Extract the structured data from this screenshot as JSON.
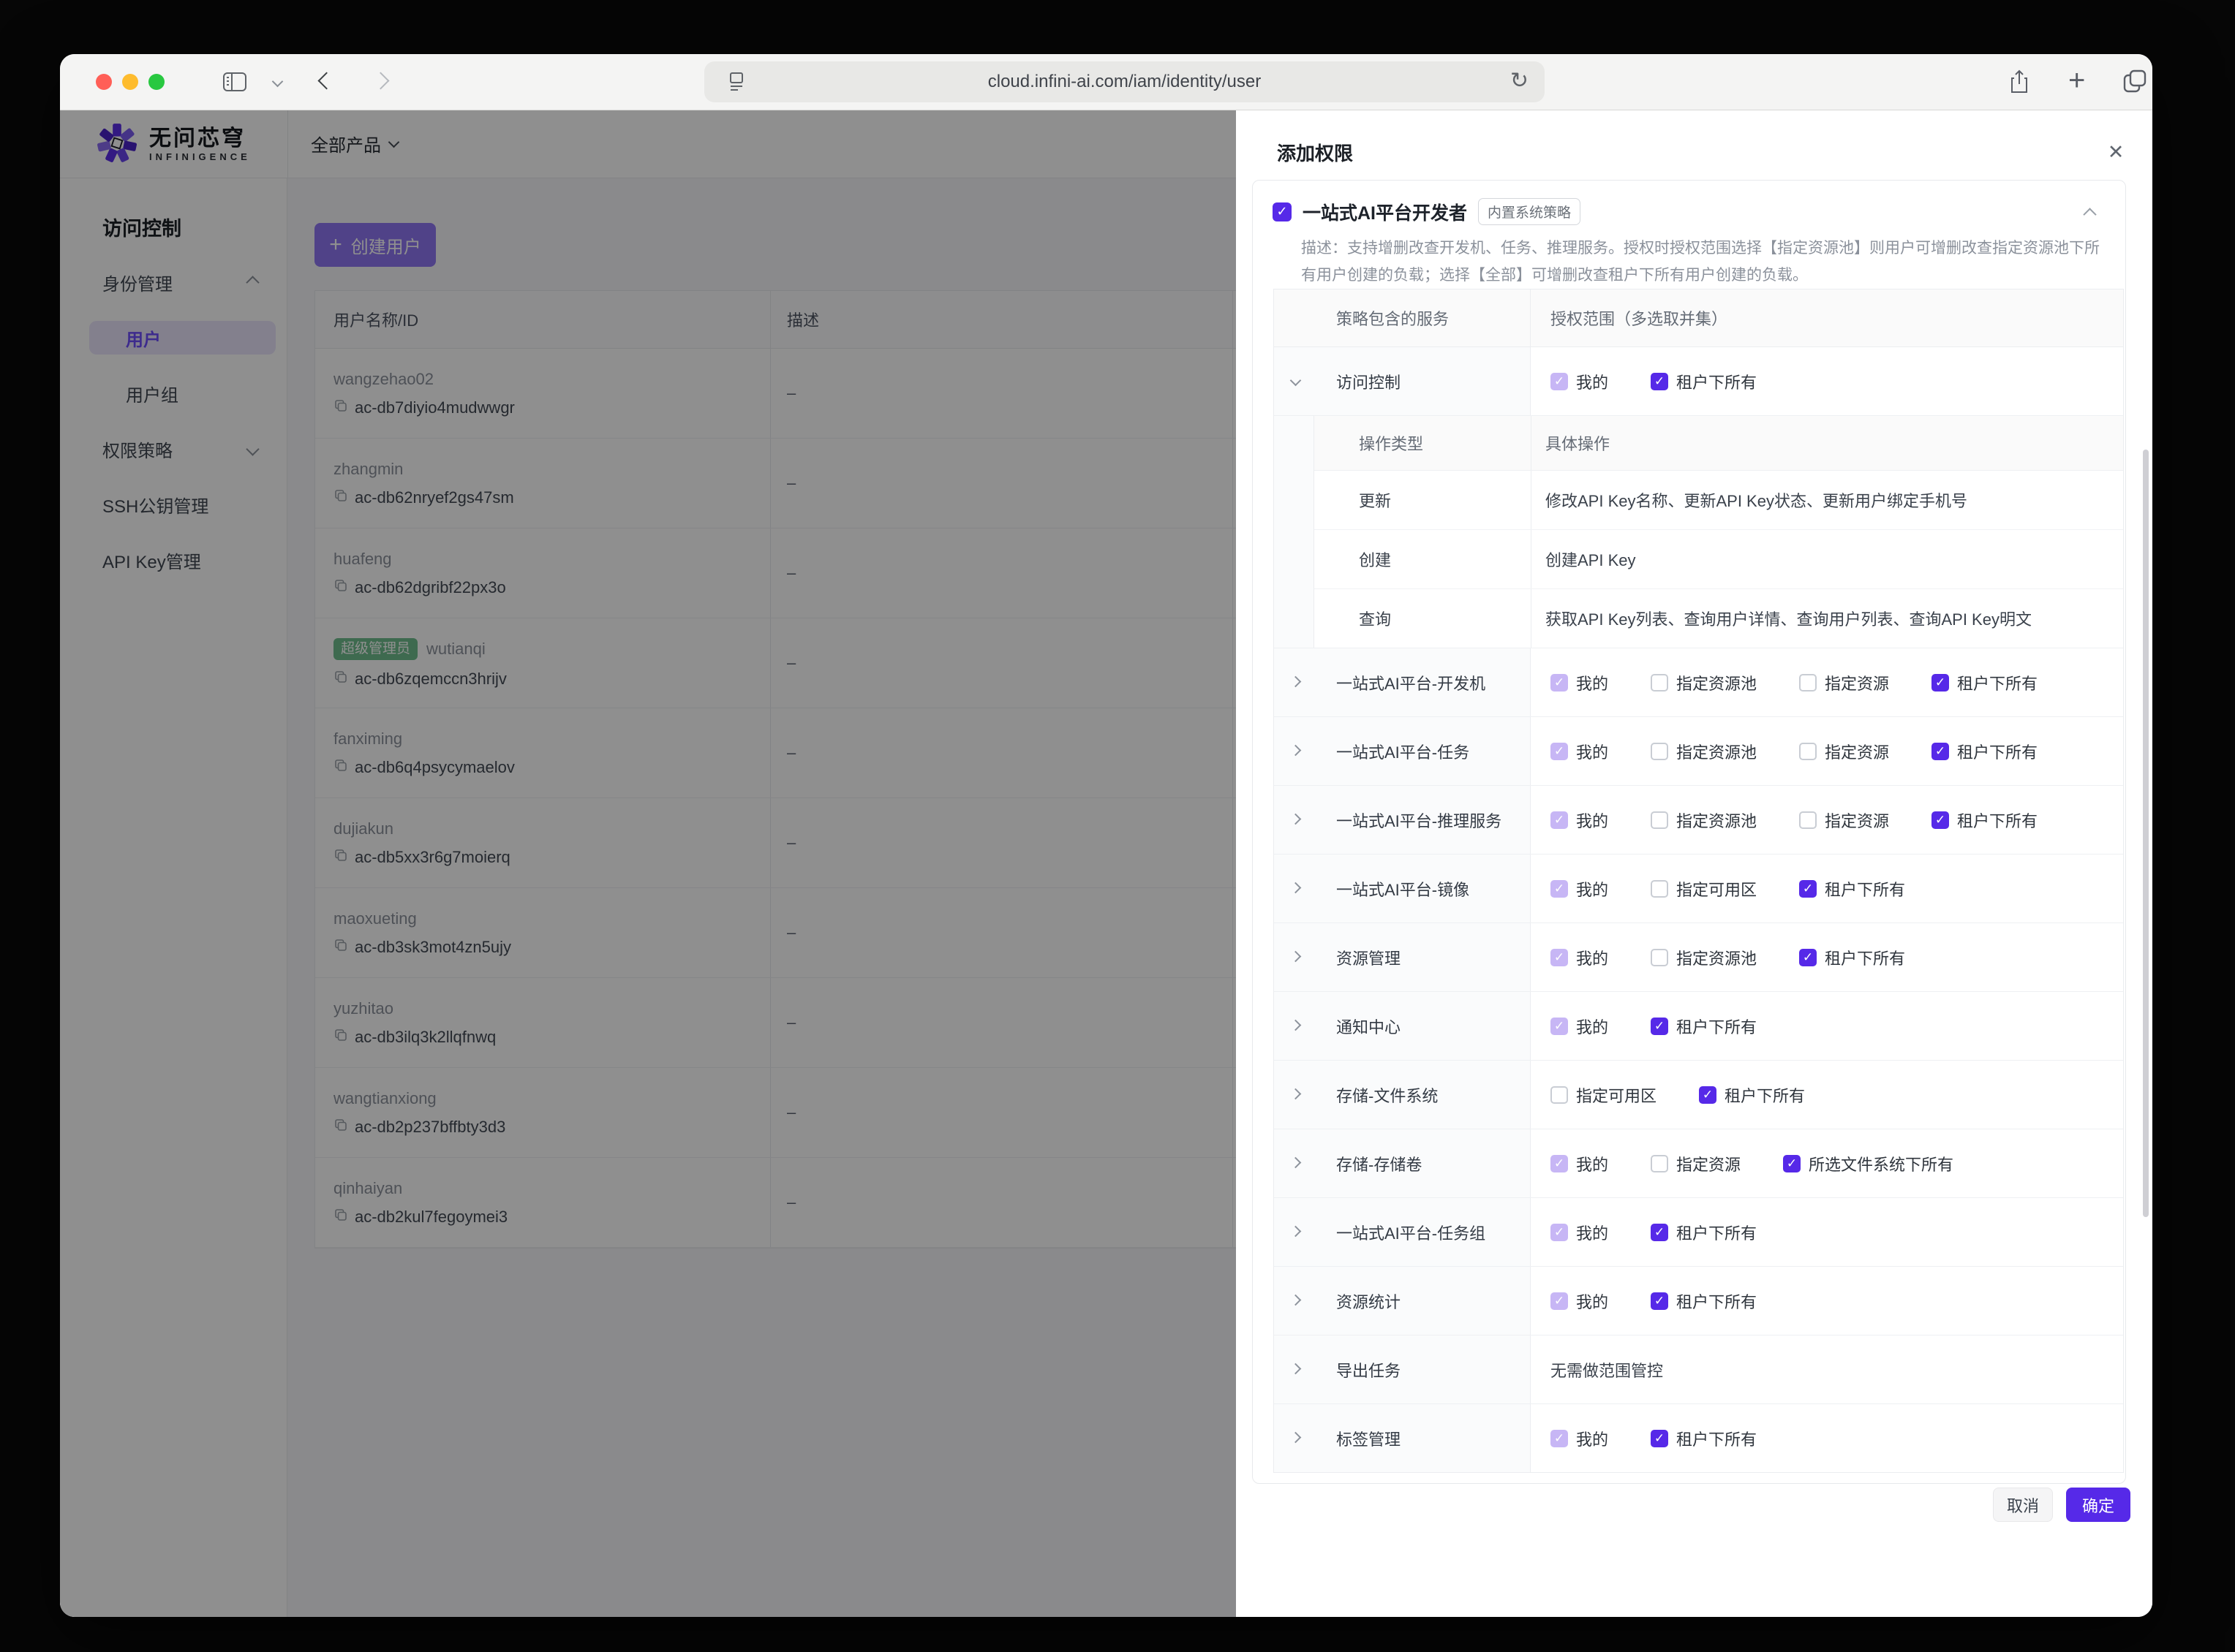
{
  "colors": {
    "accent": "#5629e8",
    "accent_strong": "#6e4dfb",
    "accent_soft": "#c7b6f5",
    "create_button": "#8f76f2",
    "badge_green": "#6fbe8d",
    "light_red": "#ff5f57",
    "light_yellow": "#febc2e",
    "light_green": "#28c840"
  },
  "browser": {
    "url": "cloud.infini-ai.com/iam/identity/user"
  },
  "brand": {
    "name_cn": "无问芯穹",
    "name_en": "INFINIGENCE",
    "products_dropdown": "全部产品"
  },
  "sidebar": {
    "section": "访问控制",
    "items": [
      {
        "key": "identity",
        "label": "身份管理",
        "chevron": "up"
      },
      {
        "key": "users",
        "label": "用户",
        "active": true,
        "indent": true
      },
      {
        "key": "user-groups",
        "label": "用户组",
        "indent": true
      },
      {
        "key": "policies",
        "label": "权限策略",
        "chevron": "down"
      },
      {
        "key": "ssh-keys",
        "label": "SSH公钥管理"
      },
      {
        "key": "api-keys",
        "label": "API Key管理"
      }
    ]
  },
  "main": {
    "create_button": "创建用户",
    "table": {
      "columns": [
        "用户名称/ID",
        "描述"
      ],
      "rows": [
        {
          "name": "wangzehao02",
          "id": "ac-db7diyio4mudwwgr",
          "desc": "–"
        },
        {
          "name": "zhangmin",
          "id": "ac-db62nryef2gs47sm",
          "desc": "–"
        },
        {
          "name": "huafeng",
          "id": "ac-db62dgribf22px3o",
          "desc": "–"
        },
        {
          "name": "wutianqi",
          "badge": "超级管理员",
          "id": "ac-db6zqemccn3hrijv",
          "desc": "–"
        },
        {
          "name": "fanximing",
          "id": "ac-db6q4psycymaelov",
          "desc": "–"
        },
        {
          "name": "dujiakun",
          "id": "ac-db5xx3r6g7moierq",
          "desc": "–"
        },
        {
          "name": "maoxueting",
          "id": "ac-db3sk3mot4zn5ujy",
          "desc": "–"
        },
        {
          "name": "yuzhitao",
          "id": "ac-db3ilq3k2llqfnwq",
          "desc": "–"
        },
        {
          "name": "wangtianxiong",
          "id": "ac-db2p237bffbty3d3",
          "desc": "–"
        },
        {
          "name": "qinhaiyan",
          "id": "ac-db2kul7fegoymei3",
          "desc": "–"
        }
      ]
    }
  },
  "drawer": {
    "title": "添加权限",
    "policy": {
      "checked": true,
      "name": "一站式AI平台开发者",
      "badge": "内置系统策略",
      "description": "描述：支持增删改查开发机、任务、推理服务。授权时授权范围选择【指定资源池】则用户可增删改查指定资源池下所有用户创建的负载；选择【全部】可增删改查租户下所有用户创建的负载。"
    },
    "table": {
      "col_service": "策略包含的服务",
      "col_scope": "授权范围（多选取并集）",
      "sub_header": {
        "op_type": "操作类型",
        "op_detail": "具体操作"
      },
      "sub_rows": [
        {
          "type": "更新",
          "detail": "修改API Key名称、更新API Key状态、更新用户绑定手机号"
        },
        {
          "type": "创建",
          "detail": "创建API Key"
        },
        {
          "type": "查询",
          "detail": "获取API Key列表、查询用户详情、查询用户列表、查询API Key明文"
        }
      ],
      "rows": [
        {
          "service": "访问控制",
          "expanded": true,
          "options": [
            {
              "label": "我的",
              "state": "dc"
            },
            {
              "label": "租户下所有",
              "state": "checked"
            }
          ]
        },
        {
          "service": "一站式AI平台-开发机",
          "options": [
            {
              "label": "我的",
              "state": "dc"
            },
            {
              "label": "指定资源池",
              "state": "un"
            },
            {
              "label": "指定资源",
              "state": "un"
            },
            {
              "label": "租户下所有",
              "state": "checked"
            }
          ]
        },
        {
          "service": "一站式AI平台-任务",
          "options": [
            {
              "label": "我的",
              "state": "dc"
            },
            {
              "label": "指定资源池",
              "state": "un"
            },
            {
              "label": "指定资源",
              "state": "un"
            },
            {
              "label": "租户下所有",
              "state": "checked"
            }
          ]
        },
        {
          "service": "一站式AI平台-推理服务",
          "options": [
            {
              "label": "我的",
              "state": "dc"
            },
            {
              "label": "指定资源池",
              "state": "un"
            },
            {
              "label": "指定资源",
              "state": "un"
            },
            {
              "label": "租户下所有",
              "state": "checked"
            }
          ]
        },
        {
          "service": "一站式AI平台-镜像",
          "options": [
            {
              "label": "我的",
              "state": "dc"
            },
            {
              "label": "指定可用区",
              "state": "un"
            },
            {
              "label": "租户下所有",
              "state": "checked"
            }
          ]
        },
        {
          "service": "资源管理",
          "options": [
            {
              "label": "我的",
              "state": "dc"
            },
            {
              "label": "指定资源池",
              "state": "un"
            },
            {
              "label": "租户下所有",
              "state": "checked"
            }
          ]
        },
        {
          "service": "通知中心",
          "options": [
            {
              "label": "我的",
              "state": "dc"
            },
            {
              "label": "租户下所有",
              "state": "checked"
            }
          ]
        },
        {
          "service": "存储-文件系统",
          "options": [
            {
              "label": "指定可用区",
              "state": "un"
            },
            {
              "label": "租户下所有",
              "state": "checked"
            }
          ]
        },
        {
          "service": "存储-存储卷",
          "options": [
            {
              "label": "我的",
              "state": "dc"
            },
            {
              "label": "指定资源",
              "state": "un"
            },
            {
              "label": "所选文件系统下所有",
              "state": "checked"
            }
          ]
        },
        {
          "service": "一站式AI平台-任务组",
          "options": [
            {
              "label": "我的",
              "state": "dc"
            },
            {
              "label": "租户下所有",
              "state": "checked"
            }
          ]
        },
        {
          "service": "资源统计",
          "options": [
            {
              "label": "我的",
              "state": "dc"
            },
            {
              "label": "租户下所有",
              "state": "checked"
            }
          ]
        },
        {
          "service": "导出任务",
          "note": "无需做范围管控"
        },
        {
          "service": "标签管理",
          "options": [
            {
              "label": "我的",
              "state": "dc"
            },
            {
              "label": "租户下所有",
              "state": "checked"
            }
          ]
        }
      ]
    },
    "footer": {
      "cancel": "取消",
      "confirm": "确定"
    }
  }
}
